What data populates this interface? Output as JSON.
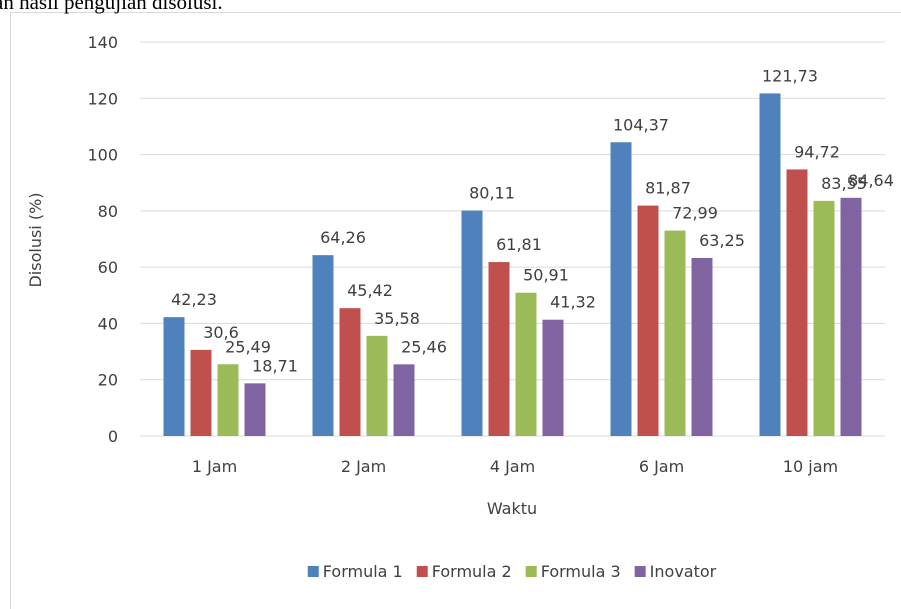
{
  "caption": "an hasil pengujian disolusi.",
  "chart_data": {
    "type": "bar",
    "categories": [
      "1 Jam",
      "2 Jam",
      "4 Jam",
      "6 Jam",
      "10 jam"
    ],
    "x_label": "Waktu",
    "y_label": "Disolusi (%)",
    "ylim": [
      0,
      140
    ],
    "yticks": [
      0,
      20,
      40,
      60,
      80,
      100,
      120,
      140
    ],
    "grid": true,
    "legend": "bottom",
    "series": [
      {
        "name": "Formula 1",
        "color": "#4f81bd",
        "values": [
          42.23,
          64.26,
          80.11,
          104.37,
          121.73
        ],
        "value_labels": [
          "42,23",
          "64,26",
          "80,11",
          "104,37",
          "121,73"
        ]
      },
      {
        "name": "Formula 2",
        "color": "#c0504d",
        "values": [
          30.6,
          45.42,
          61.81,
          81.87,
          94.72
        ],
        "value_labels": [
          "30,6",
          "45,42",
          "61,81",
          "81,87",
          "94,72"
        ]
      },
      {
        "name": "Formula 3",
        "color": "#9bbb59",
        "values": [
          25.49,
          35.58,
          50.91,
          72.99,
          83.55
        ],
        "value_labels": [
          "25,49",
          "35,58",
          "50,91",
          "72,99",
          "83,55"
        ]
      },
      {
        "name": "Inovator",
        "color": "#8064a2",
        "values": [
          18.71,
          25.46,
          41.32,
          63.25,
          84.64
        ],
        "value_labels": [
          "18,71",
          "25,46",
          "41,32",
          "63,25",
          "84,64"
        ]
      }
    ]
  }
}
